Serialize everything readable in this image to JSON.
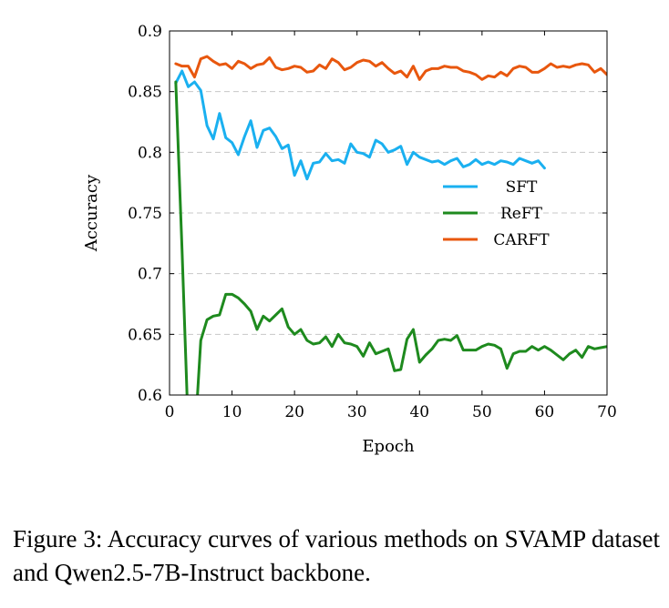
{
  "caption": "Figure 3:  Accuracy curves of various methods on SVAMP dataset and Qwen2.5-7B-Instruct backbone.",
  "chart_data": {
    "type": "line",
    "xlabel": "Epoch",
    "ylabel": "Accuracy",
    "xlim": [
      0,
      70
    ],
    "ylim": [
      0.6,
      0.9
    ],
    "xticks": [
      0,
      10,
      20,
      30,
      40,
      50,
      60,
      70
    ],
    "xtick_labels": [
      "0",
      "10",
      "20",
      "30",
      "40",
      "50",
      "60",
      "70"
    ],
    "yticks": [
      0.6,
      0.65,
      0.7,
      0.75,
      0.8,
      0.85,
      0.9
    ],
    "ytick_labels": [
      "0.6",
      "0.65",
      "0.7",
      "0.75",
      "0.8",
      "0.85",
      "0.9"
    ],
    "grid": "horizontal dashed",
    "legend_position": "center-right",
    "series": [
      {
        "name": "SFT",
        "color": "#1ab0f0",
        "x": [
          1,
          2,
          3,
          4,
          5,
          6,
          7,
          8,
          9,
          10,
          11,
          12,
          13,
          14,
          15,
          16,
          17,
          18,
          19,
          20,
          21,
          22,
          23,
          24,
          25,
          26,
          27,
          28,
          29,
          30,
          31,
          32,
          33,
          34,
          35,
          36,
          37,
          38,
          39,
          40,
          41,
          42,
          43,
          44,
          45,
          46,
          47,
          48,
          49,
          50,
          51,
          52,
          53,
          54,
          55,
          56,
          57,
          58,
          59,
          60
        ],
        "y": [
          0.857,
          0.867,
          0.854,
          0.858,
          0.851,
          0.822,
          0.811,
          0.832,
          0.812,
          0.808,
          0.798,
          0.813,
          0.826,
          0.804,
          0.818,
          0.82,
          0.813,
          0.803,
          0.806,
          0.781,
          0.793,
          0.778,
          0.791,
          0.792,
          0.799,
          0.793,
          0.794,
          0.791,
          0.807,
          0.8,
          0.799,
          0.796,
          0.81,
          0.807,
          0.8,
          0.802,
          0.805,
          0.79,
          0.8,
          0.796,
          0.794,
          0.792,
          0.793,
          0.79,
          0.793,
          0.795,
          0.788,
          0.79,
          0.794,
          0.79,
          0.792,
          0.79,
          0.793,
          0.792,
          0.79,
          0.795,
          0.793,
          0.791,
          0.793,
          0.787
        ]
      },
      {
        "name": "ReFT",
        "color": "#1e8a1e",
        "x": [
          1,
          2,
          3,
          4,
          5,
          6,
          7,
          8,
          9,
          10,
          11,
          12,
          13,
          14,
          15,
          16,
          17,
          18,
          19,
          20,
          21,
          22,
          23,
          24,
          25,
          26,
          27,
          28,
          29,
          30,
          31,
          32,
          33,
          34,
          35,
          36,
          37,
          38,
          39,
          40,
          41,
          42,
          43,
          44,
          45,
          46,
          47,
          48,
          49,
          50,
          51,
          52,
          53,
          54,
          55,
          56,
          57,
          58,
          59,
          60,
          61,
          62,
          63,
          64,
          65,
          66,
          67,
          68,
          69,
          70
        ],
        "y": [
          0.858,
          0.72,
          0.57,
          0.56,
          0.645,
          0.662,
          0.665,
          0.666,
          0.683,
          0.683,
          0.68,
          0.675,
          0.669,
          0.654,
          0.665,
          0.661,
          0.666,
          0.671,
          0.656,
          0.65,
          0.654,
          0.645,
          0.642,
          0.643,
          0.648,
          0.64,
          0.65,
          0.643,
          0.642,
          0.64,
          0.632,
          0.643,
          0.634,
          0.636,
          0.638,
          0.62,
          0.621,
          0.646,
          0.654,
          0.627,
          0.633,
          0.638,
          0.645,
          0.646,
          0.645,
          0.649,
          0.637,
          0.637,
          0.637,
          0.64,
          0.642,
          0.641,
          0.638,
          0.622,
          0.634,
          0.636,
          0.636,
          0.64,
          0.637,
          0.64,
          0.637,
          0.633,
          0.629,
          0.634,
          0.637,
          0.631,
          0.64,
          0.638,
          0.639,
          0.64
        ]
      },
      {
        "name": "CARFT",
        "color": "#e8570e",
        "x": [
          1,
          2,
          3,
          4,
          5,
          6,
          7,
          8,
          9,
          10,
          11,
          12,
          13,
          14,
          15,
          16,
          17,
          18,
          19,
          20,
          21,
          22,
          23,
          24,
          25,
          26,
          27,
          28,
          29,
          30,
          31,
          32,
          33,
          34,
          35,
          36,
          37,
          38,
          39,
          40,
          41,
          42,
          43,
          44,
          45,
          46,
          47,
          48,
          49,
          50,
          51,
          52,
          53,
          54,
          55,
          56,
          57,
          58,
          59,
          60,
          61,
          62,
          63,
          64,
          65,
          66,
          67,
          68,
          69,
          70
        ],
        "y": [
          0.873,
          0.871,
          0.871,
          0.862,
          0.877,
          0.879,
          0.875,
          0.872,
          0.873,
          0.869,
          0.875,
          0.873,
          0.869,
          0.872,
          0.873,
          0.878,
          0.87,
          0.868,
          0.869,
          0.871,
          0.87,
          0.866,
          0.867,
          0.872,
          0.869,
          0.877,
          0.874,
          0.868,
          0.87,
          0.874,
          0.876,
          0.875,
          0.871,
          0.874,
          0.869,
          0.865,
          0.867,
          0.862,
          0.871,
          0.86,
          0.867,
          0.869,
          0.869,
          0.871,
          0.87,
          0.87,
          0.867,
          0.866,
          0.864,
          0.86,
          0.863,
          0.862,
          0.866,
          0.863,
          0.869,
          0.871,
          0.87,
          0.866,
          0.866,
          0.869,
          0.873,
          0.87,
          0.871,
          0.87,
          0.872,
          0.873,
          0.872,
          0.866,
          0.869,
          0.864
        ]
      }
    ]
  }
}
